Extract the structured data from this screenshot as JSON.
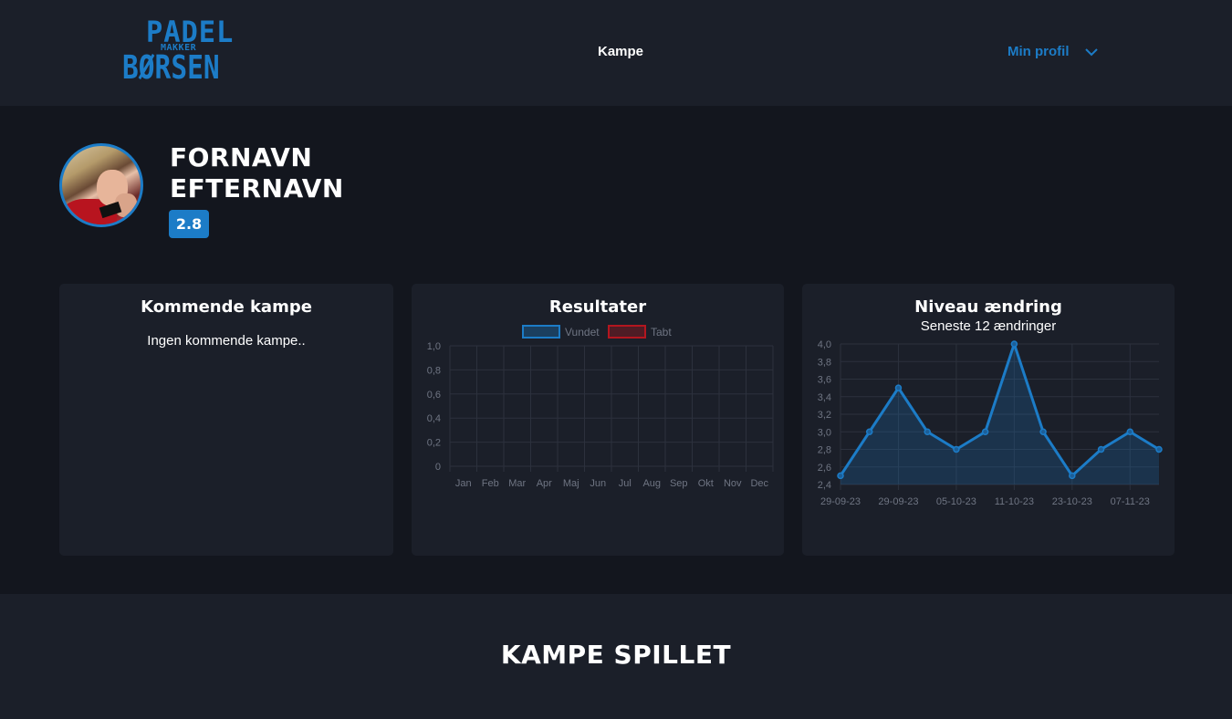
{
  "header": {
    "logo": {
      "line1": "PADEL",
      "line2": "MAKKER",
      "line3": "BØRSEN"
    },
    "nav": {
      "kampe": "Kampe",
      "profile": "Min profil"
    }
  },
  "profile": {
    "first_name": "FORNAVN",
    "last_name": "EFTERNAVN",
    "level": "2.8"
  },
  "cards": {
    "upcoming": {
      "title": "Kommende kampe",
      "empty_text": "Ingen kommende kampe.."
    },
    "results": {
      "title": "Resultater"
    },
    "level_change": {
      "title": "Niveau ændring",
      "subtitle": "Seneste 12 ændringer"
    }
  },
  "sections": {
    "played_title": "KAMPE SPILLET"
  },
  "colors": {
    "accent": "#1c7cc7",
    "loss": "#b3161f",
    "background": "#13161e",
    "panel": "#1b1f29"
  },
  "chart_data": [
    {
      "type": "bar",
      "title": "Resultater",
      "categories": [
        "Jan",
        "Feb",
        "Mar",
        "Apr",
        "Maj",
        "Jun",
        "Jul",
        "Aug",
        "Sep",
        "Okt",
        "Nov",
        "Dec"
      ],
      "series": [
        {
          "name": "Vundet",
          "values": [
            0,
            0,
            0,
            0,
            0,
            0,
            0,
            0,
            0,
            0,
            0,
            0
          ],
          "color": "#1c7cc7"
        },
        {
          "name": "Tabt",
          "values": [
            0,
            0,
            0,
            0,
            0,
            0,
            0,
            0,
            0,
            0,
            0,
            0
          ],
          "color": "#b3161f"
        }
      ],
      "yticks": [
        "1,0",
        "0,8",
        "0,6",
        "0,4",
        "0,2",
        "0"
      ],
      "ylim": [
        0,
        1.0
      ],
      "legend": "top",
      "grid": true
    },
    {
      "type": "area",
      "title": "Niveau ændring",
      "subtitle": "Seneste 12 ændringer",
      "x": [
        "29-09-23",
        "",
        "29-09-23",
        "",
        "05-10-23",
        "",
        "11-10-23",
        "",
        "23-10-23",
        "",
        "07-11-23",
        ""
      ],
      "xticks": [
        "29-09-23",
        "29-09-23",
        "05-10-23",
        "11-10-23",
        "23-10-23",
        "07-11-23"
      ],
      "values": [
        2.5,
        3.0,
        3.5,
        3.0,
        2.8,
        3.0,
        4.0,
        3.0,
        2.5,
        2.8,
        3.0,
        2.8
      ],
      "yticks": [
        "4,0",
        "3,8",
        "3,6",
        "3,4",
        "3,2",
        "3,0",
        "2,8",
        "2,6",
        "2,4"
      ],
      "ylim": [
        2.4,
        4.0
      ],
      "grid": true
    }
  ]
}
